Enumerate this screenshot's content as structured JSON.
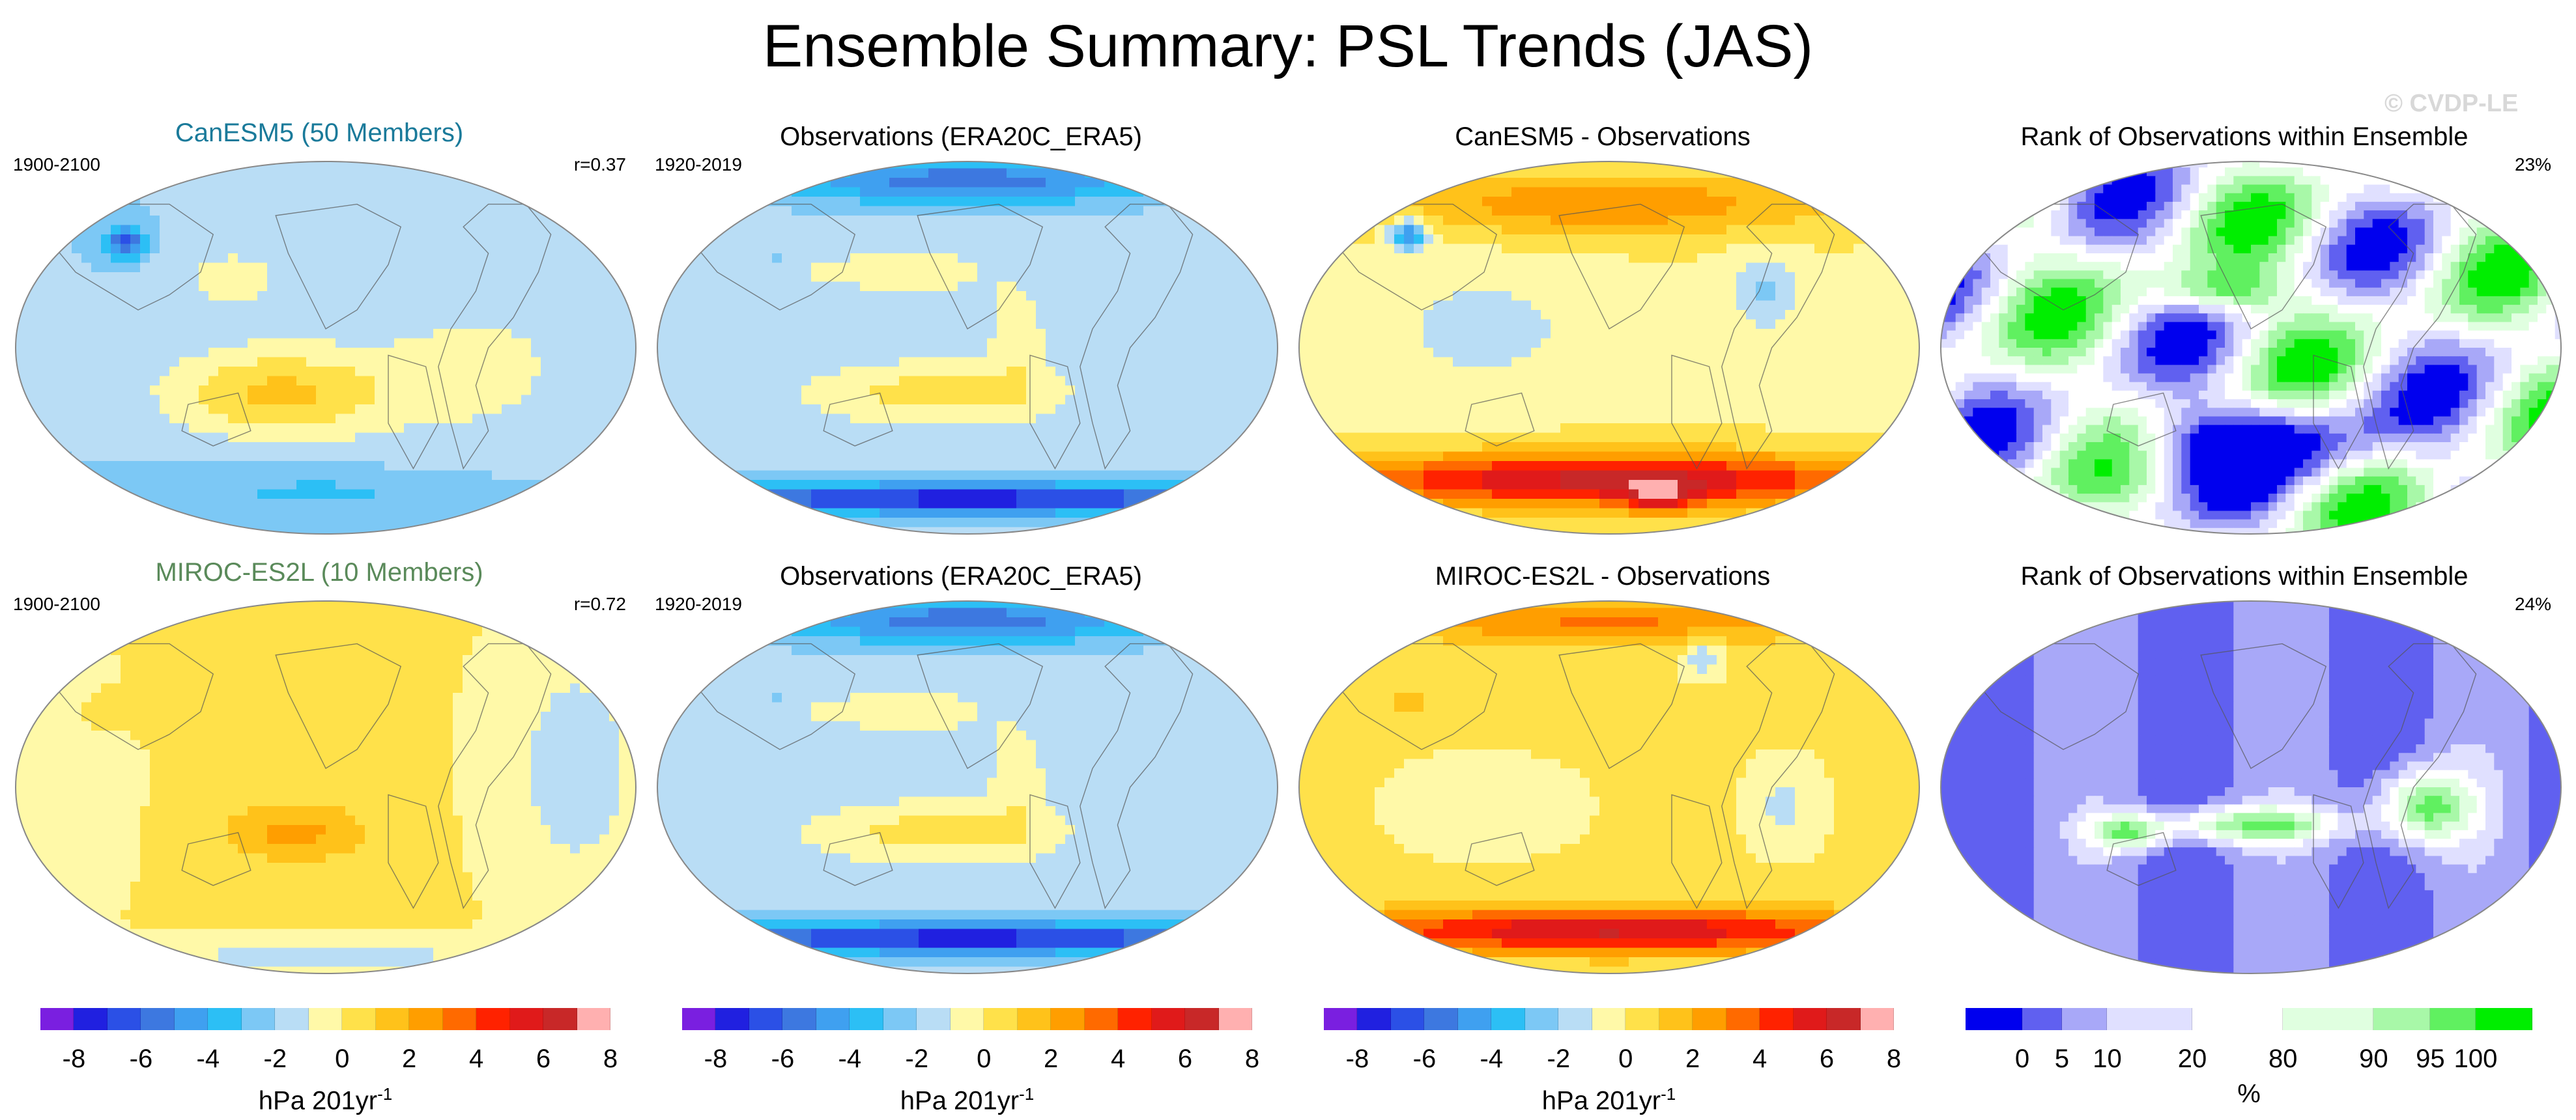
{
  "title": "Ensemble Summary: PSL Trends (JAS)",
  "watermark": "© CVDP-LE",
  "colors": {
    "trend_scale": [
      "#7a1fe0",
      "#2020e0",
      "#2b50e6",
      "#3d78e0",
      "#3fa0f0",
      "#2cbff5",
      "#7cc8f5",
      "#b9ddf5",
      "#fff9a8",
      "#ffe14a",
      "#ffc21a",
      "#ff9e00",
      "#ff6a00",
      "#ff2200",
      "#e01a1a",
      "#c82828",
      "#ffb0b0"
    ],
    "rank_scale": [
      "#0000ee",
      "#6060f0",
      "#a8a8f8",
      "#e0e0ff",
      "#ffffff",
      "#e0ffe0",
      "#a8f8a8",
      "#60f060",
      "#00ee00"
    ],
    "map_outline": "#888888",
    "coast": "#555555"
  },
  "rows": [
    {
      "panels": [
        {
          "type": "model",
          "title": "CanESM5 (50 Members)",
          "left": "1900-2100",
          "right": "r=0.37",
          "pattern": "can_model"
        },
        {
          "type": "obs",
          "title": "Observations (ERA20C_ERA5)",
          "left": "1920-2019",
          "right": "",
          "pattern": "obs"
        },
        {
          "type": "diff",
          "title": "CanESM5 - Observations",
          "left": "",
          "right": "",
          "pattern": "can_diff"
        },
        {
          "type": "rank",
          "title": "Rank of Observations within Ensemble",
          "left": "",
          "right": "23%",
          "pattern": "can_rank"
        }
      ]
    },
    {
      "panels": [
        {
          "type": "model",
          "title": "MIROC-ES2L (10 Members)",
          "left": "1900-2100",
          "right": "r=0.72",
          "pattern": "miroc_model"
        },
        {
          "type": "obs",
          "title": "Observations (ERA20C_ERA5)",
          "left": "1920-2019",
          "right": "",
          "pattern": "obs"
        },
        {
          "type": "diff",
          "title": "MIROC-ES2L - Observations",
          "left": "",
          "right": "",
          "pattern": "miroc_diff"
        },
        {
          "type": "rank",
          "title": "Rank of Observations within Ensemble",
          "left": "",
          "right": "24%",
          "pattern": "miroc_rank"
        }
      ]
    }
  ],
  "colorbars": [
    {
      "kind": "trend",
      "ticks": [
        "-8",
        "-6",
        "-4",
        "-2",
        "0",
        "2",
        "4",
        "6",
        "8"
      ],
      "label": "hPa 201yr",
      "label_sup": "-1"
    },
    {
      "kind": "trend",
      "ticks": [
        "-8",
        "-6",
        "-4",
        "-2",
        "0",
        "2",
        "4",
        "6",
        "8"
      ],
      "label": "hPa 201yr",
      "label_sup": "-1"
    },
    {
      "kind": "trend",
      "ticks": [
        "-8",
        "-6",
        "-4",
        "-2",
        "0",
        "2",
        "4",
        "6",
        "8"
      ],
      "label": "hPa 201yr",
      "label_sup": "-1"
    },
    {
      "kind": "rank",
      "ticks": [
        "0",
        "5",
        "10",
        "20",
        "80",
        "90",
        "95",
        "100"
      ],
      "label": "%",
      "label_sup": ""
    }
  ]
}
